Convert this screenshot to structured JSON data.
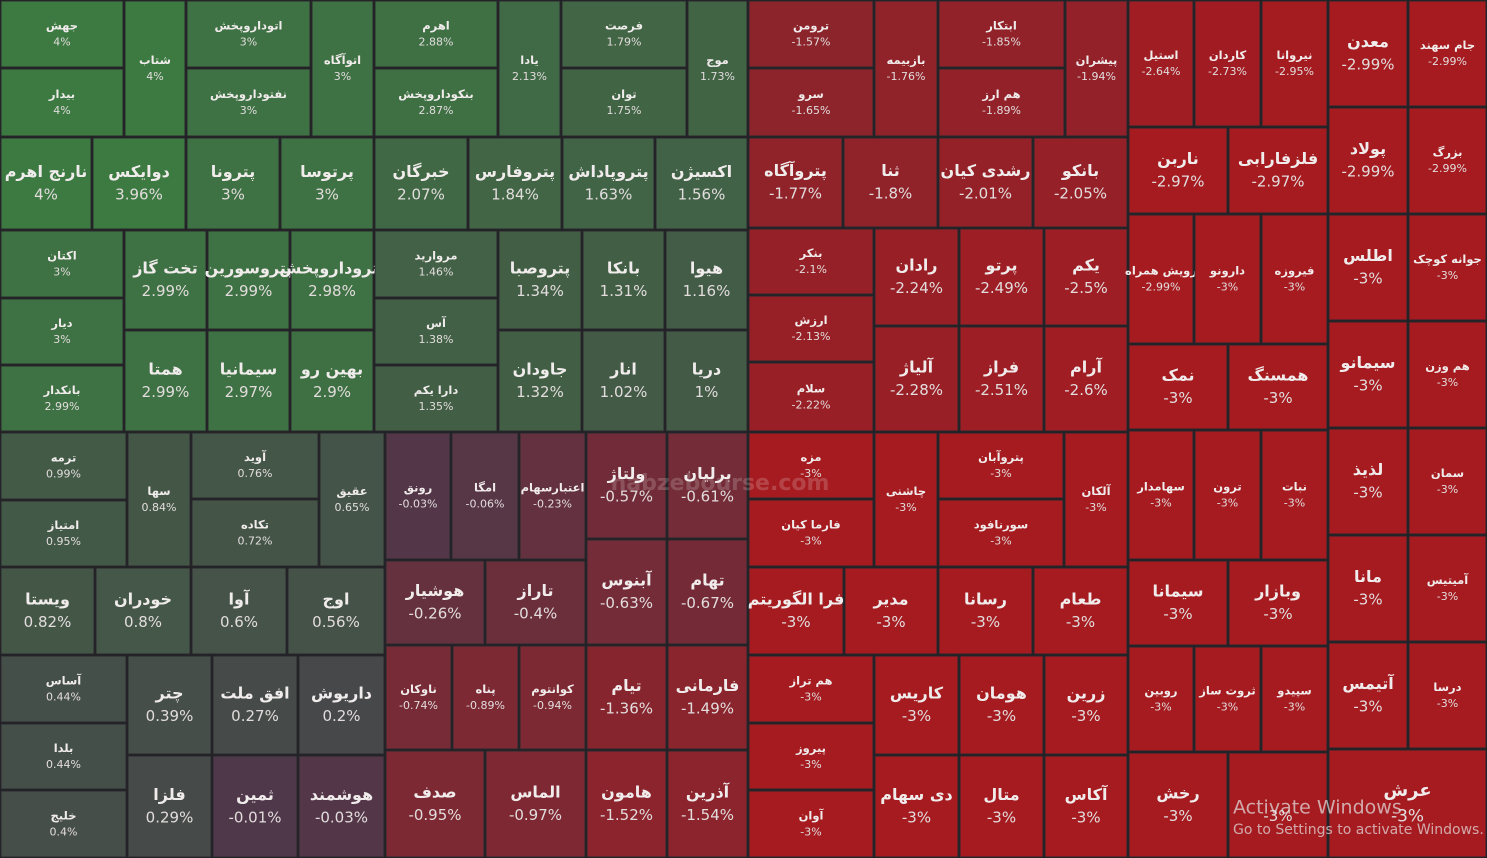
{
  "chart_data": {
    "type": "treemap",
    "categories": [
      "جهش",
      "بیدار",
      "شتاب",
      "اتوداروپخش",
      "نفتوداروپخش",
      "اتوآگاه",
      "اهرم",
      "بنکوداروپخش",
      "یادا",
      "فرصت",
      "توان",
      "موج",
      "نارنج اهرم",
      "دوایکس",
      "پترونا",
      "پرتوسا",
      "خبرگان",
      "پتروفارس",
      "پتروپاداش",
      "اکسیژن",
      "اکتان",
      "دیار",
      "بانکدار",
      "تخت گاز",
      "پتروسورین",
      "پتروداروپخش",
      "همتا",
      "سیمانیا",
      "بهین رو",
      "مروارید",
      "آس",
      "دارا یکم",
      "پتروصبا",
      "بانکا",
      "هیوا",
      "جاودان",
      "انار",
      "دریا",
      "ترمه",
      "امتیاز",
      "سها",
      "آوید",
      "تکاده",
      "عقیق",
      "ویستا",
      "خودران",
      "آوا",
      "اوج",
      "آساس",
      "بلدا",
      "خلیج",
      "چتر",
      "افق ملت",
      "داریوش",
      "فلزا",
      "ثمین",
      "هوشمند",
      "رونق",
      "امگا",
      "اعتبارسهام",
      "ولتاژ",
      "برلیان",
      "هوشیار",
      "تاراز",
      "آبنوس",
      "تهام",
      "ناوکان",
      "پناه",
      "کوانتوم",
      "تیام",
      "فارمانی",
      "صدف",
      "الماس",
      "هامون",
      "آذرین",
      "ترومن",
      "سرو",
      "بازبیمه",
      "ابتکار",
      "هم ارز",
      "پیشران",
      "پتروآگاه",
      "ثنا",
      "رشدی کیان",
      "بانکو",
      "بنکر",
      "ارزش",
      "سلام",
      "رادان",
      "پرتو",
      "یکم",
      "آلیاژ",
      "فراز",
      "آرام",
      "مزه",
      "فارما کیان",
      "چاشنی",
      "پتروآبان",
      "سورنافود",
      "آلکان",
      "فرا الگوریتم",
      "مدیر",
      "رسانا",
      "طعام",
      "هم تراز",
      "پیروز",
      "آوان",
      "کاریس",
      "هومان",
      "زرین",
      "دی سهام",
      "متال",
      "آکاس",
      "استیل",
      "کاردان",
      "نیروانا",
      "معدن",
      "جام سهند",
      "پولاد",
      "بزرگ",
      "ناربن",
      "فلزفارابی",
      "رویش همراه",
      "دارونو",
      "فیروزه",
      "اطلس",
      "جوانه کوچک",
      "سیمانو",
      "هم وزن",
      "نمک",
      "همسنگ",
      "سهامدار",
      "ترون",
      "نبات",
      "لذیذ",
      "سمان",
      "سیمانا",
      "وبازار",
      "مانا",
      "آمیتیس",
      "روبین",
      "ثروت ساز",
      "سپیدو",
      "رخش",
      null,
      "آتیمس",
      "درسا",
      "عرش"
    ],
    "values": [
      4,
      4,
      4,
      3,
      3,
      3,
      2.88,
      2.87,
      2.13,
      1.79,
      1.75,
      1.73,
      4,
      3.96,
      3,
      3,
      2.07,
      1.84,
      1.63,
      1.56,
      3,
      3,
      2.99,
      2.99,
      2.99,
      2.98,
      2.99,
      2.97,
      2.9,
      1.46,
      1.38,
      1.35,
      1.34,
      1.31,
      1.16,
      1.32,
      1.02,
      1,
      0.99,
      0.95,
      0.84,
      0.76,
      0.72,
      0.65,
      0.82,
      0.8,
      0.6,
      0.56,
      0.44,
      0.44,
      0.4,
      0.39,
      0.27,
      0.2,
      0.29,
      -0.01,
      -0.03,
      -0.03,
      -0.06,
      -0.23,
      -0.57,
      -0.61,
      -0.26,
      -0.4,
      -0.63,
      -0.67,
      -0.74,
      -0.89,
      -0.94,
      -1.36,
      -1.49,
      -0.95,
      -0.97,
      -1.52,
      -1.54,
      -1.57,
      -1.65,
      -1.76,
      -1.85,
      -1.89,
      -1.94,
      -1.77,
      -1.8,
      -2.01,
      -2.05,
      -2.1,
      -2.13,
      -2.22,
      -2.24,
      -2.49,
      -2.5,
      -2.28,
      -2.51,
      -2.6,
      -3,
      -3,
      -3,
      -3,
      -3,
      -3,
      -3,
      -3,
      -3,
      -3,
      -3,
      -3,
      -3,
      -3,
      -3,
      -3,
      -3,
      -3,
      -3,
      -2.64,
      -2.73,
      -2.95,
      -2.99,
      -2.99,
      -2.99,
      -2.99,
      -2.97,
      -2.97,
      -2.99,
      -3,
      -3,
      -3,
      -3,
      -3,
      -3,
      -3,
      -3,
      -3,
      -3,
      -3,
      -3,
      -3,
      -3,
      -3,
      -3,
      -3,
      -3,
      -3,
      -3,
      -3,
      -3,
      -3,
      -3,
      -3
    ],
    "value_labels": [
      "4%",
      "4%",
      "4%",
      "3%",
      "3%",
      "3%",
      "2.88%",
      "2.87%",
      "2.13%",
      "1.79%",
      "1.75%",
      "1.73%",
      "4%",
      "3.96%",
      "3%",
      "3%",
      "2.07%",
      "1.84%",
      "1.63%",
      "1.56%",
      "3%",
      "3%",
      "2.99%",
      "2.99%",
      "2.99%",
      "2.98%",
      "2.99%",
      "2.97%",
      "2.9%",
      "1.46%",
      "1.38%",
      "1.35%",
      "1.34%",
      "1.31%",
      "1.16%",
      "1.32%",
      "1.02%",
      "1%",
      "0.99%",
      "0.95%",
      "0.84%",
      "0.76%",
      "0.72%",
      "0.65%",
      "0.82%",
      "0.8%",
      "0.6%",
      "0.56%",
      "0.44%",
      "0.44%",
      "0.4%",
      "0.39%",
      "0.27%",
      "0.2%",
      "0.29%",
      "-0.01%",
      "-0.03%",
      "-0.03%",
      "-0.06%",
      "-0.23%",
      "-0.57%",
      "-0.61%",
      "-0.26%",
      "-0.4%",
      "-0.63%",
      "-0.67%",
      "-0.74%",
      "-0.89%",
      "-0.94%",
      "-1.36%",
      "-1.49%",
      "-0.95%",
      "-0.97%",
      "-1.52%",
      "-1.54%",
      "-1.57%",
      "-1.65%",
      "-1.76%",
      "-1.85%",
      "-1.89%",
      "-1.94%",
      "-1.77%",
      "-1.8%",
      "-2.01%",
      "-2.05%",
      "-2.1%",
      "-2.13%",
      "-2.22%",
      "-2.24%",
      "-2.49%",
      "-2.5%",
      "-2.28%",
      "-2.51%",
      "-2.6%",
      "-3%",
      "-3%",
      "-3%",
      "-3%",
      "-3%",
      "-3%",
      "-3%",
      "-3%",
      "-3%",
      "-3%",
      "-3%",
      "-3%",
      "-3%",
      "-3%",
      "-3%",
      "-3%",
      "-3%",
      "-3%",
      "-3%",
      "-2.64%",
      "-2.73%",
      "-2.95%",
      "-2.99%",
      "-2.99%",
      "-2.99%",
      "-2.99%",
      "-2.97%",
      "-2.97%",
      "-2.99%",
      "-3%",
      "-3%",
      "-3%",
      "-3%",
      "-3%",
      "-3%",
      "-3%",
      "-3%",
      "-3%",
      "-3%",
      "-3%",
      "-3%",
      "-3%",
      "-3%",
      "-3%",
      "-3%",
      "-3%",
      "-3%",
      "-3%",
      "-3%",
      "-3%",
      "-3%",
      "-3%",
      "-3%",
      "-3%"
    ],
    "colors": {
      "positive": "#3c7a42",
      "neutral": "#4a3a4c",
      "negative": "#a51b20"
    },
    "watermark": "nabzebourse.com",
    "overlay": [
      "Activate Windows",
      "Go to Settings to activate Windows."
    ]
  }
}
